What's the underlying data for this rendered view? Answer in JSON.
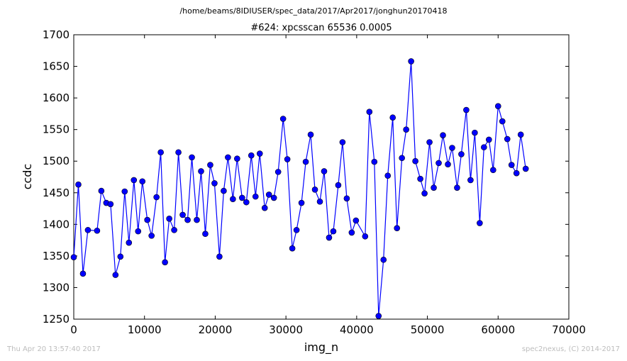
{
  "page": {
    "path": "/home/beams/8IDIUSER/spec_data/2017/Apr2017/jonghun20170418",
    "timestamp": "Thu Apr 20 13:57:40 2017",
    "credit": "spec2nexus, (C) 2014-2017"
  },
  "chart_data": {
    "type": "line",
    "title": "#624: xpcsscan 65536 0.0005",
    "xlabel": "img_n",
    "ylabel": "ccdc",
    "xlim": [
      0,
      70000
    ],
    "ylim": [
      1250,
      1700
    ],
    "xticks": [
      0,
      10000,
      20000,
      30000,
      40000,
      50000,
      60000,
      70000
    ],
    "yticks": [
      1250,
      1300,
      1350,
      1400,
      1450,
      1500,
      1550,
      1600,
      1650,
      1700
    ],
    "grid": false,
    "series_color": "#0000ff",
    "marker": "circle",
    "points": [
      [
        0,
        1348
      ],
      [
        650,
        1463
      ],
      [
        1300,
        1322
      ],
      [
        2000,
        1391
      ],
      [
        3300,
        1390
      ],
      [
        3900,
        1453
      ],
      [
        4600,
        1434
      ],
      [
        5200,
        1432
      ],
      [
        5900,
        1320
      ],
      [
        6600,
        1349
      ],
      [
        7200,
        1452
      ],
      [
        7800,
        1371
      ],
      [
        8500,
        1470
      ],
      [
        9100,
        1389
      ],
      [
        9700,
        1468
      ],
      [
        10400,
        1407
      ],
      [
        11000,
        1382
      ],
      [
        11700,
        1443
      ],
      [
        12300,
        1514
      ],
      [
        12900,
        1340
      ],
      [
        13500,
        1409
      ],
      [
        14200,
        1391
      ],
      [
        14800,
        1514
      ],
      [
        15400,
        1415
      ],
      [
        16100,
        1407
      ],
      [
        16700,
        1506
      ],
      [
        17400,
        1407
      ],
      [
        18000,
        1484
      ],
      [
        18600,
        1385
      ],
      [
        19300,
        1494
      ],
      [
        19900,
        1465
      ],
      [
        20600,
        1349
      ],
      [
        21200,
        1453
      ],
      [
        21800,
        1506
      ],
      [
        22500,
        1440
      ],
      [
        23100,
        1504
      ],
      [
        23800,
        1442
      ],
      [
        24400,
        1435
      ],
      [
        25100,
        1509
      ],
      [
        25700,
        1444
      ],
      [
        26300,
        1512
      ],
      [
        27000,
        1426
      ],
      [
        27600,
        1447
      ],
      [
        28300,
        1442
      ],
      [
        28900,
        1483
      ],
      [
        29600,
        1567
      ],
      [
        30200,
        1503
      ],
      [
        30900,
        1362
      ],
      [
        31500,
        1391
      ],
      [
        32200,
        1434
      ],
      [
        32800,
        1499
      ],
      [
        33500,
        1542
      ],
      [
        34100,
        1455
      ],
      [
        34800,
        1436
      ],
      [
        35400,
        1484
      ],
      [
        36100,
        1379
      ],
      [
        36700,
        1389
      ],
      [
        37400,
        1462
      ],
      [
        38000,
        1530
      ],
      [
        38600,
        1441
      ],
      [
        39300,
        1387
      ],
      [
        39900,
        1406
      ],
      [
        41200,
        1381
      ],
      [
        41800,
        1578
      ],
      [
        42500,
        1499
      ],
      [
        43100,
        1255
      ],
      [
        43800,
        1344
      ],
      [
        44400,
        1477
      ],
      [
        45100,
        1569
      ],
      [
        45700,
        1394
      ],
      [
        46400,
        1505
      ],
      [
        47000,
        1550
      ],
      [
        47700,
        1658
      ],
      [
        48300,
        1500
      ],
      [
        49000,
        1472
      ],
      [
        49600,
        1449
      ],
      [
        50300,
        1530
      ],
      [
        50900,
        1458
      ],
      [
        51600,
        1497
      ],
      [
        52200,
        1541
      ],
      [
        52900,
        1495
      ],
      [
        53500,
        1521
      ],
      [
        54200,
        1458
      ],
      [
        54800,
        1511
      ],
      [
        55500,
        1581
      ],
      [
        56100,
        1470
      ],
      [
        56700,
        1545
      ],
      [
        57400,
        1402
      ],
      [
        58000,
        1522
      ],
      [
        58700,
        1534
      ],
      [
        59300,
        1486
      ],
      [
        60000,
        1587
      ],
      [
        60600,
        1563
      ],
      [
        61300,
        1535
      ],
      [
        61900,
        1494
      ],
      [
        62600,
        1481
      ],
      [
        63200,
        1542
      ],
      [
        63900,
        1488
      ]
    ]
  }
}
